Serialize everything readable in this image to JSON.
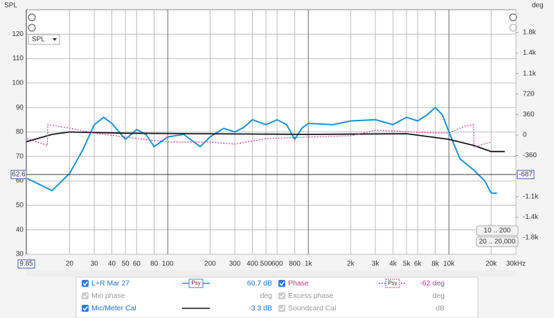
{
  "chart_data": {
    "type": "line",
    "y_axis_title": "SPL",
    "y2_axis_title": "deg",
    "dropdown": "SPL",
    "xscale": "log",
    "grid": true,
    "xlim": [
      9.85,
      30000
    ],
    "xticks": [
      20,
      30,
      40,
      50,
      60,
      80,
      100,
      200,
      300,
      400,
      500,
      600,
      800,
      {
        "value": 1000,
        "label": "1k"
      },
      {
        "value": 2000,
        "label": "2k"
      },
      {
        "value": 3000,
        "label": "3k"
      },
      {
        "value": 4000,
        "label": "4k"
      },
      {
        "value": 5000,
        "label": "5k"
      },
      {
        "value": 6000,
        "label": "6k"
      },
      {
        "value": 8000,
        "label": "8k"
      },
      {
        "value": 10000,
        "label": "10k"
      },
      {
        "value": 20000,
        "label": "20k"
      },
      {
        "value": 30000,
        "label": "30kHz"
      }
    ],
    "ylim": [
      30,
      130
    ],
    "yticks": [
      30,
      40,
      50,
      60,
      70,
      80,
      90,
      100,
      110,
      120
    ],
    "y2lim": [
      -2092,
      2201
    ],
    "y2ticks": [
      {
        "value": 1800,
        "label": "1.8k"
      },
      {
        "value": 1440,
        "label": "1.4k"
      },
      {
        "value": 1080,
        "label": "1.1k"
      },
      720,
      360,
      0,
      -360,
      {
        "value": -1080,
        "label": "-1.1k"
      },
      {
        "value": -1440,
        "label": "-1.4k"
      },
      {
        "value": -1800,
        "label": "-1.8k"
      }
    ],
    "cursor": {
      "x": 9.85,
      "y": 62.6,
      "y2": -687
    },
    "series": [
      {
        "name": "L+R Mar 27",
        "color": "#1a8fd0",
        "smoothing": "Psy",
        "readout": "60.7 dB",
        "x": [
          10,
          15,
          20,
          25,
          30,
          35,
          40,
          50,
          60,
          70,
          80,
          100,
          130,
          170,
          200,
          250,
          300,
          350,
          400,
          500,
          600,
          700,
          800,
          900,
          1000,
          1500,
          2000,
          3000,
          4000,
          5000,
          6000,
          7000,
          8000,
          9000,
          10000,
          12000,
          15000,
          18000,
          20000,
          22000
        ],
        "values": [
          61,
          56,
          63,
          73,
          83,
          86,
          83.5,
          77,
          81,
          79,
          74,
          78,
          79,
          74,
          78,
          81.5,
          80,
          82,
          85,
          83,
          85,
          83,
          77,
          81.5,
          83.5,
          83,
          84.5,
          85,
          83,
          86,
          84.5,
          87,
          90,
          87,
          80,
          69,
          64.5,
          60,
          55,
          55
        ]
      },
      {
        "name": "Mic/Meter Cal",
        "color": "#111111",
        "readout": "-3.3 dB",
        "x": [
          9.85,
          15,
          20,
          50,
          1000,
          5000,
          10000,
          15000,
          20000,
          25000
        ],
        "values": [
          76,
          79,
          80,
          79.5,
          79,
          79.3,
          77,
          74.5,
          72,
          72
        ]
      },
      {
        "name": "Phase",
        "color": "#d0308a",
        "axis": "y2",
        "dashed": true,
        "smoothing": "Psy",
        "readout": "-62 deg",
        "x": [
          10,
          13.9,
          14,
          20,
          30,
          50,
          100,
          200,
          300,
          500,
          1000,
          2000,
          3000,
          5000,
          8000,
          10000,
          13000,
          15000,
          15100,
          20000
        ],
        "values": [
          -61,
          -182,
          182,
          122,
          36,
          -36,
          -122,
          -122,
          -158,
          -61,
          -36,
          -12,
          85,
          61,
          36,
          36,
          158,
          182,
          -207,
          -122
        ]
      }
    ],
    "inactive": [
      {
        "name": "Min phase",
        "unit": "deg"
      },
      {
        "name": "Excess phase",
        "unit": "deg"
      },
      {
        "name": "Soundcard Cal",
        "unit": "dB"
      }
    ],
    "buttons": [
      "10 .. 200",
      "20 .. 20,000"
    ]
  }
}
